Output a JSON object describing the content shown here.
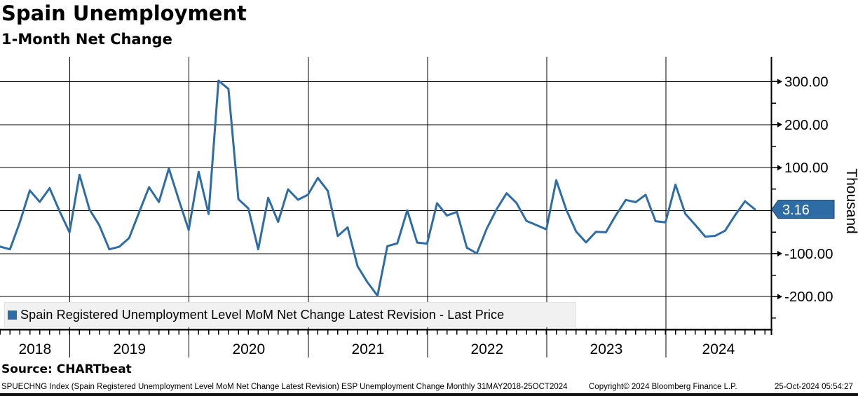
{
  "header": {
    "title": "Spain Unemployment",
    "subtitle": "1-Month Net Change"
  },
  "legend": {
    "marker_color": "#2d6ca5",
    "label": "Spain Registered Unemployment Level MoM Net Change Latest Revision - Last Price"
  },
  "last_price": {
    "value": "3.16",
    "tag_color": "#2d6ca5",
    "tag_border_color": "#17426e"
  },
  "y_axis": {
    "unit_label": "Thousand",
    "tick_values": [
      300,
      200,
      100,
      -100,
      -200
    ],
    "tick_labels": [
      "300.00",
      "200.00",
      "100.00",
      "-100.00",
      "-200.00"
    ],
    "minor_tick_values": [
      250,
      150,
      50,
      -50,
      -150,
      -250
    ]
  },
  "x_axis": {
    "year_labels": [
      "2018",
      "2019",
      "2020",
      "2021",
      "2022",
      "2023",
      "2024"
    ]
  },
  "source_label": "Source: CHARTbeat",
  "footer": {
    "left": "SPUECHNG Index (Spain Registered Unemployment Level MoM Net Change Latest Revision) ESP Unemployment Change  Monthly 31MAY2018-25OCT2024",
    "center": "Copyright© 2024 Bloomberg Finance L.P.",
    "right": "25-Oct-2024 05:54:27"
  },
  "chart_data": {
    "type": "line",
    "title": "Spain Unemployment - 1-Month Net Change",
    "series": [
      {
        "name": "Spain Registered Unemployment Level MoM Net Change Latest Revision - Last Price",
        "color": "#2d6ca5",
        "values": [
          -83.7,
          -90.0,
          -27.1,
          47.0,
          20.4,
          52.2,
          -1.5,
          -50.6,
          83.5,
          3.3,
          -34.0,
          -90.0,
          -84.1,
          -63.8,
          -4.3,
          54.4,
          20.0,
          98.0,
          25.0,
          -45.0,
          90.2,
          -7.8,
          302.3,
          282.9,
          26.6,
          5.1,
          -89.8,
          29.8,
          -26.3,
          49.6,
          25.3,
          36.8,
          76.2,
          46.0,
          -59.1,
          -39.0,
          -129.4,
          -166.9,
          -197.8,
          -82.6,
          -76.1,
          0.6,
          -74.4,
          -76.8,
          17.2,
          -11.4,
          -2.9,
          -86.3,
          -99.5,
          -42.4,
          3.2,
          40.4,
          17.7,
          -24.0,
          -33.5,
          -43.7,
          70.7,
          2.6,
          -48.8,
          -73.9,
          -49.3,
          -50.3,
          -11.0,
          24.8,
          19.8,
          36.9,
          -24.6,
          -27.4,
          60.4,
          -7.5,
          -33.4,
          -60.5,
          -58.7,
          -46.8,
          -10.8,
          21.9,
          3.16
        ]
      }
    ],
    "x": [
      "2018-05",
      "2018-06",
      "2018-07",
      "2018-08",
      "2018-09",
      "2018-10",
      "2018-11",
      "2018-12",
      "2019-01",
      "2019-02",
      "2019-03",
      "2019-04",
      "2019-05",
      "2019-06",
      "2019-07",
      "2019-08",
      "2019-09",
      "2019-10",
      "2019-11",
      "2019-12",
      "2020-01",
      "2020-02",
      "2020-03",
      "2020-04",
      "2020-05",
      "2020-06",
      "2020-07",
      "2020-08",
      "2020-09",
      "2020-10",
      "2020-11",
      "2020-12",
      "2021-01",
      "2021-02",
      "2021-03",
      "2021-04",
      "2021-05",
      "2021-06",
      "2021-07",
      "2021-08",
      "2021-09",
      "2021-10",
      "2021-11",
      "2021-12",
      "2022-01",
      "2022-02",
      "2022-03",
      "2022-04",
      "2022-05",
      "2022-06",
      "2022-07",
      "2022-08",
      "2022-09",
      "2022-10",
      "2022-11",
      "2022-12",
      "2023-01",
      "2023-02",
      "2023-03",
      "2023-04",
      "2023-05",
      "2023-06",
      "2023-07",
      "2023-08",
      "2023-09",
      "2023-10",
      "2023-11",
      "2023-12",
      "2024-01",
      "2024-02",
      "2024-03",
      "2024-04",
      "2024-05",
      "2024-06",
      "2024-07",
      "2024-08",
      "2024-09"
    ],
    "xlabel": "",
    "ylabel": "Thousand",
    "x_range_label": "31MAY2018-25OCT2024",
    "frequency": "Monthly",
    "y_gridlines": [
      300,
      200,
      100,
      0,
      -100,
      -200
    ],
    "ylim": [
      -276,
      353
    ],
    "grid": true,
    "legend_position": "bottom-left",
    "last_price": 3.16
  }
}
